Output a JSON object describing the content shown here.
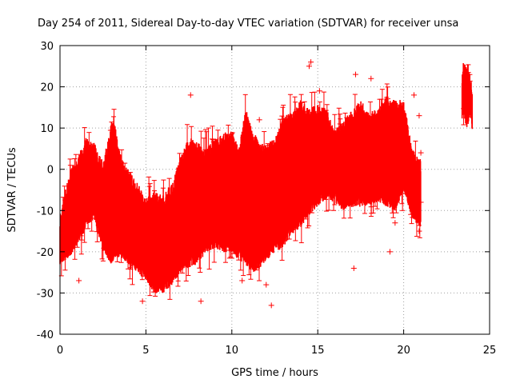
{
  "chart_data": {
    "type": "scatter",
    "title": "Day 254 of 2011, Sidereal Day-to-day VTEC variation (SDTVAR) for receiver unsa",
    "xlabel": "GPS time / hours",
    "ylabel": "SDTVAR / TECUs",
    "xlim": [
      0,
      25
    ],
    "ylim": [
      -40,
      30
    ],
    "xticks": [
      "0",
      "5",
      "10",
      "15",
      "20",
      "25"
    ],
    "yticks": [
      "-40",
      "-30",
      "-20",
      "-10",
      "0",
      "10",
      "20",
      "30"
    ],
    "grid": true,
    "marker": "+",
    "series_color": "#ff0000",
    "series": [
      {
        "name": "SDTVAR",
        "envelope": {
          "x": [
            0.0,
            0.3,
            0.6,
            1.0,
            1.5,
            2.0,
            2.5,
            3.0,
            3.1,
            3.5,
            4.0,
            4.5,
            5.0,
            5.5,
            6.0,
            6.5,
            7.0,
            7.5,
            8.0,
            8.5,
            9.0,
            9.5,
            10.0,
            10.4,
            10.8,
            11.2,
            11.6,
            12.0,
            12.5,
            13.0,
            13.5,
            14.0,
            14.5,
            15.0,
            15.5,
            16.0,
            16.5,
            17.0,
            17.5,
            18.0,
            18.5,
            19.0,
            19.5,
            20.0,
            20.5,
            21.0
          ],
          "upper": [
            -14,
            -8,
            -3,
            0,
            5,
            4,
            -1,
            9,
            10,
            1,
            -3,
            -6,
            -10,
            -8,
            -9,
            -6,
            0,
            5,
            4,
            2,
            5,
            6,
            7,
            2,
            12,
            7,
            4,
            3,
            5,
            10,
            11,
            14,
            12,
            13,
            12,
            7,
            9,
            12,
            14,
            11,
            12,
            15,
            14,
            14,
            2,
            0
          ],
          "lower": [
            -21,
            -20,
            -19,
            -16,
            -13,
            -10,
            -18,
            -21,
            -20,
            -19,
            -21,
            -23,
            -25,
            -28,
            -28,
            -26,
            -23,
            -22,
            -21,
            -18,
            -17,
            -18,
            -18,
            -20,
            -21,
            -23,
            -22,
            -20,
            -18,
            -17,
            -14,
            -12,
            -9,
            -7,
            -5,
            -6,
            -8,
            -7,
            -7,
            -7,
            -6,
            -7,
            -8,
            -3,
            -10,
            -12
          ]
        },
        "cluster": {
          "x": [
            23.4,
            23.5,
            23.6,
            23.7,
            23.8,
            23.9,
            24.0
          ],
          "upper": [
            21,
            24,
            22,
            23,
            22,
            20,
            15
          ],
          "lower": [
            14,
            15,
            13,
            12,
            14,
            15,
            10
          ]
        },
        "outliers": [
          {
            "x": 1.1,
            "y": -27
          },
          {
            "x": 4.8,
            "y": -32
          },
          {
            "x": 7.6,
            "y": 18
          },
          {
            "x": 8.2,
            "y": -32
          },
          {
            "x": 11.6,
            "y": 12
          },
          {
            "x": 12.0,
            "y": -28
          },
          {
            "x": 12.3,
            "y": -33
          },
          {
            "x": 14.5,
            "y": 25
          },
          {
            "x": 14.6,
            "y": 26
          },
          {
            "x": 15.1,
            "y": 19
          },
          {
            "x": 16.3,
            "y": 11
          },
          {
            "x": 17.2,
            "y": 23
          },
          {
            "x": 17.1,
            "y": -24
          },
          {
            "x": 18.1,
            "y": 22
          },
          {
            "x": 18.8,
            "y": 15
          },
          {
            "x": 19.2,
            "y": -20
          },
          {
            "x": 20.6,
            "y": 18
          },
          {
            "x": 20.9,
            "y": 13
          },
          {
            "x": 20.9,
            "y": -15
          },
          {
            "x": 21.0,
            "y": -8
          },
          {
            "x": 21.0,
            "y": 4
          },
          {
            "x": 19.5,
            "y": -13
          },
          {
            "x": 7.4,
            "y": -23
          },
          {
            "x": 10.6,
            "y": -27
          }
        ]
      }
    ]
  }
}
